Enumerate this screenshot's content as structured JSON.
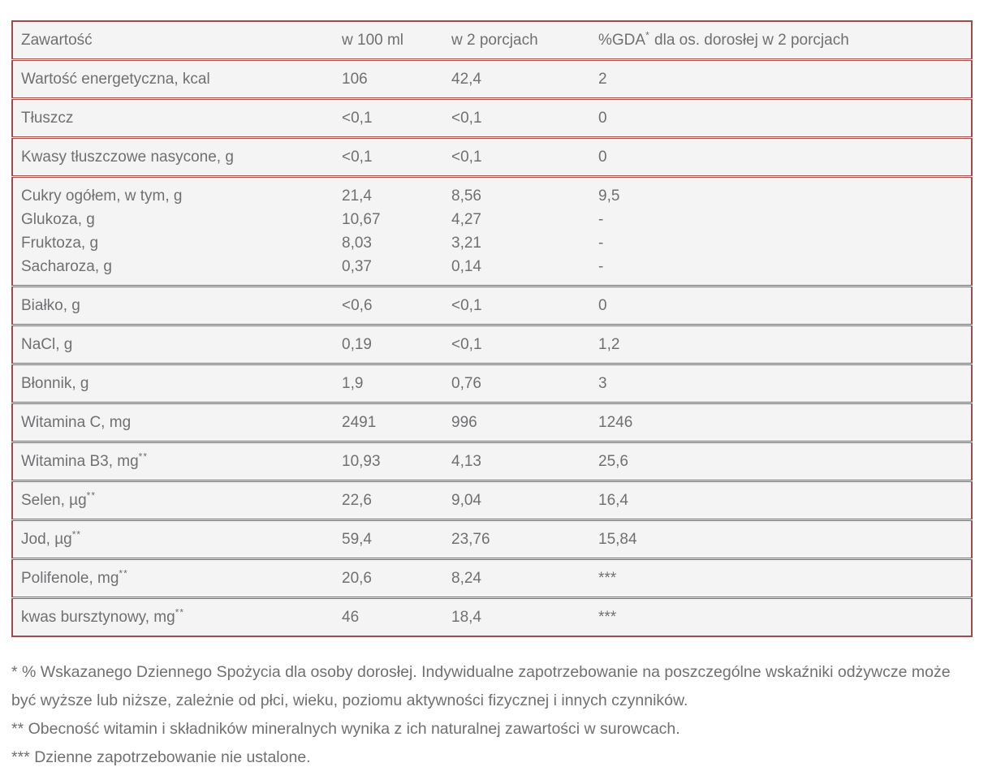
{
  "colors": {
    "table_border": "#9d4c48",
    "row_divider": "#a6524d",
    "table_background": "#f4f4f5",
    "text": "#6f7072",
    "page_background": "#ffffff"
  },
  "table": {
    "header": {
      "col_content": "Zawartość",
      "col_per_100ml": "w 100 ml",
      "col_per_2_portions": "w 2 porcjach",
      "col_gda_prefix": "%GDA",
      "col_gda_sup": "*",
      "col_gda_suffix": " dla os. dorosłej w 2 porcjach"
    },
    "rows": [
      {
        "lines": [
          {
            "label": "Wartość energetyczna, kcal",
            "label_sup": "",
            "per100": "106",
            "per2": "42,4",
            "gda": "2"
          }
        ]
      },
      {
        "lines": [
          {
            "label": "Tłuszcz",
            "label_sup": "",
            "per100": "<0,1",
            "per2": "<0,1",
            "gda": "0"
          }
        ]
      },
      {
        "lines": [
          {
            "label": "Kwasy tłuszczowe nasycone, g",
            "label_sup": "",
            "per100": "<0,1",
            "per2": "<0,1",
            "gda": "0"
          }
        ]
      },
      {
        "lines": [
          {
            "label": "Cukry ogółem, w tym, g",
            "label_sup": "",
            "per100": "21,4",
            "per2": "8,56",
            "gda": "9,5"
          },
          {
            "label": "Glukoza, g",
            "label_sup": "",
            "per100": "10,67",
            "per2": "4,27",
            "gda": "-"
          },
          {
            "label": "Fruktoza, g",
            "label_sup": "",
            "per100": "8,03",
            "per2": "3,21",
            "gda": "-"
          },
          {
            "label": "Sacharoza, g",
            "label_sup": "",
            "per100": "0,37",
            "per2": "0,14",
            "gda": "-"
          }
        ]
      },
      {
        "lines": [
          {
            "label": "Białko, g",
            "label_sup": "",
            "per100": "<0,6",
            "per2": "<0,1",
            "gda": "0"
          }
        ]
      },
      {
        "lines": [
          {
            "label": "NaCl, g",
            "label_sup": "",
            "per100": "0,19",
            "per2": "<0,1",
            "gda": "1,2"
          }
        ]
      },
      {
        "lines": [
          {
            "label": "Błonnik, g",
            "label_sup": "",
            "per100": "1,9",
            "per2": "0,76",
            "gda": "3"
          }
        ]
      },
      {
        "lines": [
          {
            "label": "Witamina C, mg",
            "label_sup": "",
            "per100": "2491",
            "per2": "996",
            "gda": "1246"
          }
        ]
      },
      {
        "lines": [
          {
            "label": "Witamina B3, mg",
            "label_sup": "**",
            "per100": "10,93",
            "per2": "4,13",
            "gda": "25,6"
          }
        ]
      },
      {
        "lines": [
          {
            "label": "Selen, µg",
            "label_sup": "**",
            "per100": "22,6",
            "per2": "9,04",
            "gda": "16,4"
          }
        ]
      },
      {
        "lines": [
          {
            "label": "Jod, µg",
            "label_sup": "**",
            "per100": "59,4",
            "per2": "23,76",
            "gda": "15,84"
          }
        ]
      },
      {
        "lines": [
          {
            "label": "Polifenole, mg",
            "label_sup": "**",
            "per100": "20,6",
            "per2": "8,24",
            "gda": "***"
          }
        ]
      },
      {
        "lines": [
          {
            "label": "kwas bursztynowy, mg",
            "label_sup": "**",
            "per100": "46",
            "per2": "18,4",
            "gda": "***"
          }
        ]
      }
    ]
  },
  "footnotes": [
    {
      "marker": "*",
      "text": "% Wskazanego Dziennego Spożycia dla osoby dorosłej. Indywidualne zapotrzebowanie na poszczególne wskaźniki odżywcze może być wyższe lub niższe, zależnie od płci, wieku, poziomu aktywności fizycznej i innych czynników."
    },
    {
      "marker": "**",
      "text": "Obecność witamin i składników mineralnych wynika z ich naturalnej zawartości w surowcach."
    },
    {
      "marker": "***",
      "text": "Dzienne zapotrzebowanie nie ustalone."
    }
  ]
}
